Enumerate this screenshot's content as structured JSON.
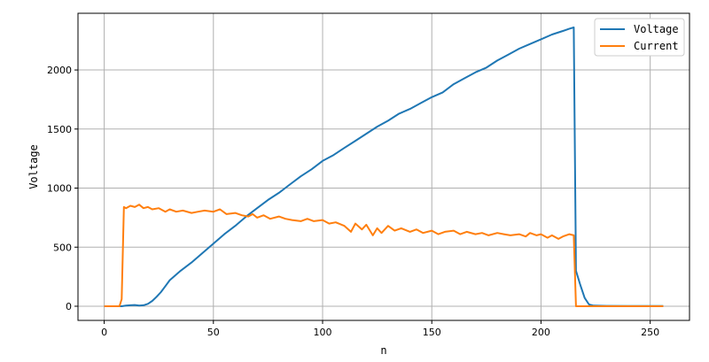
{
  "chart_data": {
    "type": "line",
    "title": "",
    "xlabel": "n",
    "ylabel": "Voltage",
    "xlim": [
      -12,
      268
    ],
    "ylim": [
      -120,
      2480
    ],
    "xticks": [
      0,
      50,
      100,
      150,
      200,
      250
    ],
    "yticks": [
      0,
      500,
      1000,
      1500,
      2000
    ],
    "grid": true,
    "legend": "top-right",
    "series": [
      {
        "name": "Voltage",
        "color": "#1f77b4",
        "x": [
          0,
          8,
          10,
          12,
          14,
          16,
          18,
          20,
          22,
          24,
          26,
          28,
          30,
          35,
          40,
          45,
          50,
          55,
          60,
          65,
          70,
          75,
          80,
          85,
          90,
          95,
          100,
          105,
          110,
          115,
          120,
          125,
          130,
          135,
          140,
          145,
          150,
          155,
          160,
          165,
          170,
          175,
          180,
          185,
          190,
          195,
          200,
          205,
          210,
          213,
          215,
          216,
          218,
          220,
          222,
          224,
          230,
          240,
          250,
          256
        ],
        "y": [
          0,
          0,
          5,
          8,
          10,
          5,
          8,
          20,
          45,
          80,
          120,
          170,
          220,
          300,
          370,
          450,
          530,
          610,
          680,
          760,
          830,
          900,
          960,
          1030,
          1100,
          1160,
          1230,
          1280,
          1340,
          1400,
          1460,
          1520,
          1570,
          1630,
          1670,
          1720,
          1770,
          1810,
          1880,
          1930,
          1980,
          2020,
          2080,
          2130,
          2180,
          2220,
          2260,
          2300,
          2330,
          2350,
          2360,
          300,
          180,
          70,
          15,
          5,
          3,
          2,
          2,
          2
        ]
      },
      {
        "name": "Current",
        "color": "#ff7f0e",
        "x": [
          0,
          7,
          8,
          9,
          10,
          12,
          14,
          16,
          18,
          20,
          22,
          25,
          28,
          30,
          33,
          36,
          40,
          43,
          46,
          50,
          53,
          56,
          60,
          63,
          66,
          68,
          70,
          73,
          76,
          80,
          83,
          86,
          90,
          93,
          96,
          100,
          103,
          106,
          110,
          113,
          115,
          118,
          120,
          123,
          125,
          127,
          130,
          133,
          136,
          140,
          143,
          146,
          150,
          153,
          156,
          160,
          163,
          166,
          170,
          173,
          176,
          180,
          183,
          186,
          190,
          193,
          195,
          198,
          200,
          203,
          205,
          208,
          210,
          213,
          215,
          216,
          218,
          220,
          230,
          240,
          250,
          256
        ],
        "y": [
          0,
          0,
          60,
          840,
          830,
          850,
          840,
          860,
          830,
          840,
          820,
          830,
          800,
          820,
          800,
          810,
          790,
          800,
          810,
          800,
          820,
          780,
          790,
          770,
          760,
          780,
          750,
          770,
          740,
          760,
          740,
          730,
          720,
          740,
          720,
          730,
          700,
          710,
          680,
          630,
          700,
          650,
          690,
          600,
          660,
          620,
          680,
          640,
          660,
          630,
          650,
          620,
          640,
          610,
          630,
          640,
          610,
          630,
          610,
          620,
          600,
          620,
          610,
          600,
          610,
          590,
          620,
          600,
          610,
          580,
          600,
          570,
          590,
          610,
          600,
          0,
          0,
          0,
          0,
          0,
          0,
          0
        ]
      }
    ]
  }
}
